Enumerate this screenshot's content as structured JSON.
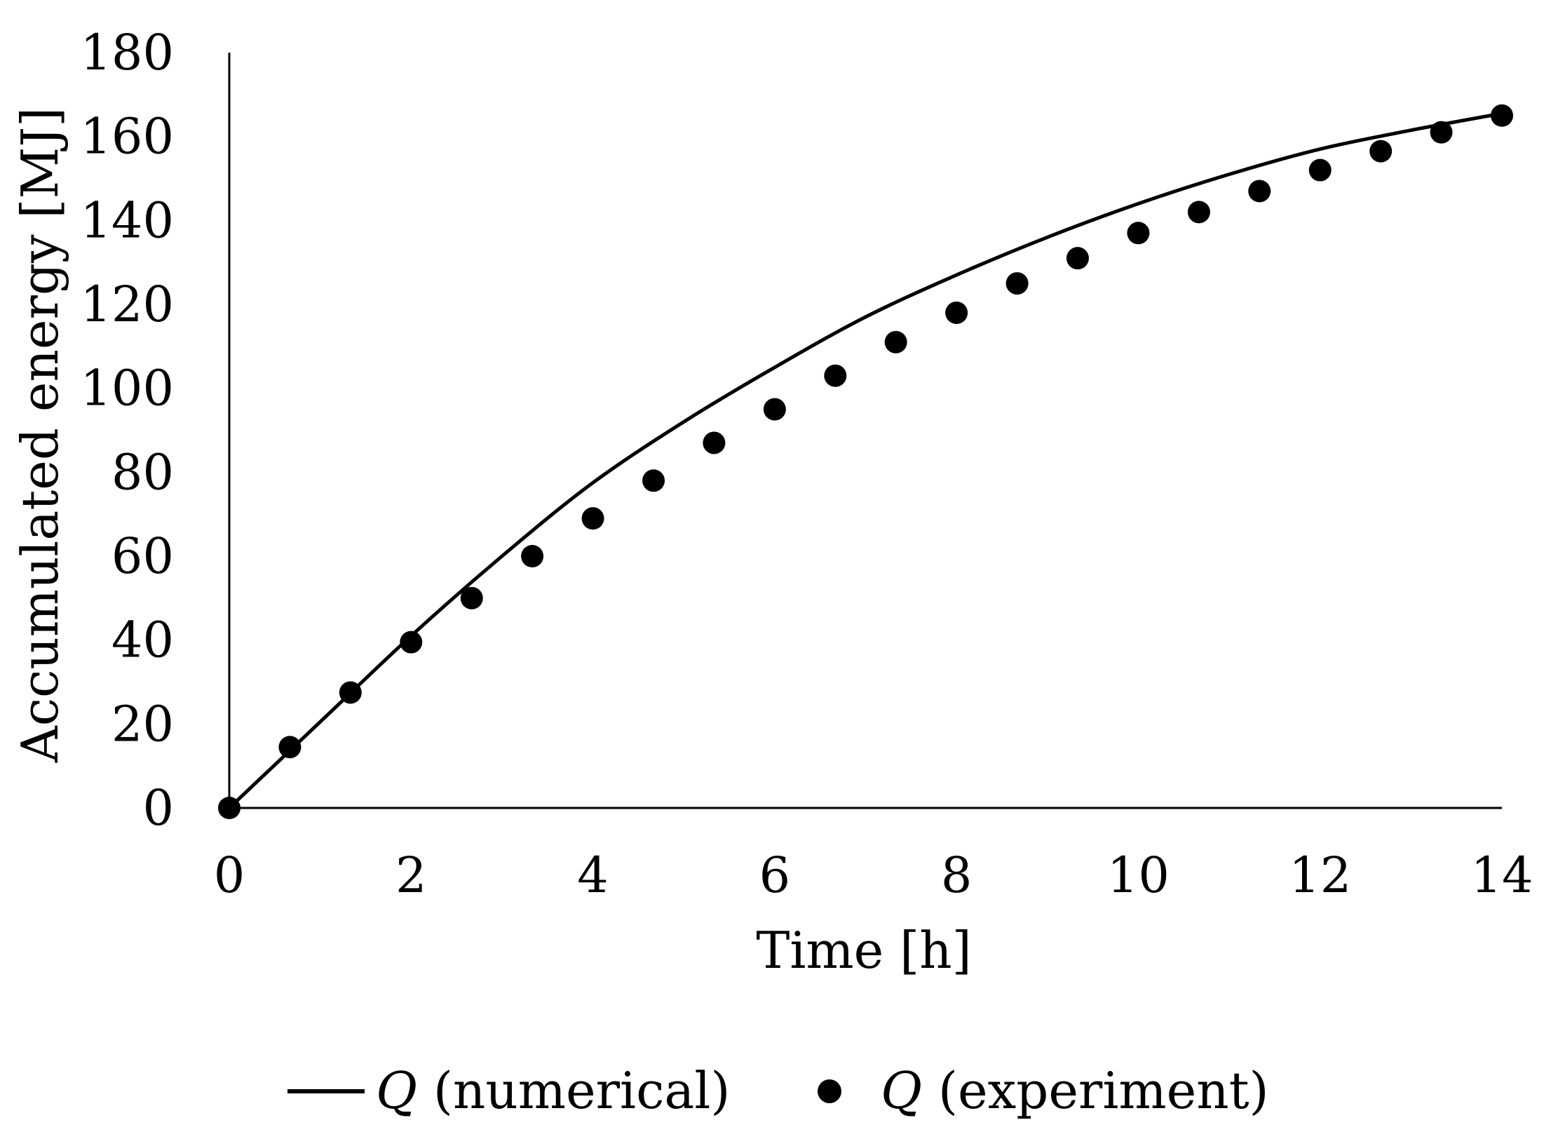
{
  "chart_data": {
    "type": "line",
    "title": "",
    "xlabel": "Time [h]",
    "ylabel": "Accumulated energy [MJ]",
    "xlim": [
      0,
      14
    ],
    "ylim": [
      0,
      180
    ],
    "x_ticks": [
      "0",
      "2",
      "4",
      "6",
      "8",
      "10",
      "12",
      "14"
    ],
    "y_ticks": [
      "0",
      "20",
      "40",
      "60",
      "80",
      "100",
      "120",
      "140",
      "160",
      "180"
    ],
    "grid": false,
    "legend_position": "bottom",
    "colors": {
      "line": "#000000",
      "marker": "#000000",
      "axis": "#000000"
    },
    "series": [
      {
        "name": "Q (numerical)",
        "legend_symbol": "Q",
        "legend_suffix": " (numerical)",
        "style": "line",
        "x": [
          0,
          1,
          2,
          3,
          4,
          5,
          6,
          7,
          8,
          9,
          10,
          11,
          12,
          13,
          14
        ],
        "y": [
          0,
          20.5,
          41,
          60,
          77.5,
          92,
          105,
          117,
          127,
          136,
          144,
          151,
          157,
          161.5,
          165.5
        ]
      },
      {
        "name": "Q (experiment)",
        "legend_symbol": "Q",
        "legend_suffix": " (experiment)",
        "style": "markers",
        "x": [
          0,
          0.667,
          1.333,
          2,
          2.667,
          3.333,
          4,
          4.667,
          5.333,
          6,
          6.667,
          7.333,
          8,
          8.667,
          9.333,
          10,
          10.667,
          11.333,
          12,
          12.667,
          13.333,
          14
        ],
        "y": [
          0,
          14.5,
          27.5,
          39.5,
          50,
          60,
          69,
          78,
          87,
          95,
          103,
          111,
          118,
          125,
          131,
          137,
          142,
          147,
          152,
          156.5,
          161,
          165
        ]
      }
    ]
  }
}
